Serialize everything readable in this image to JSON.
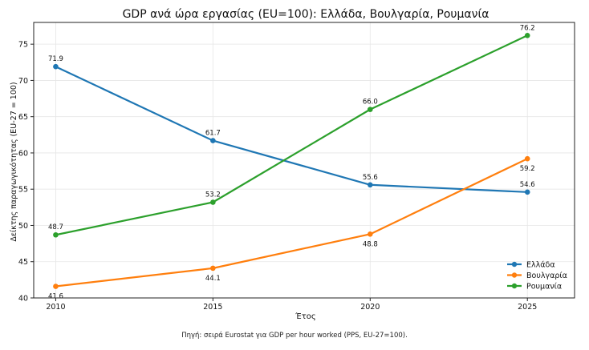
{
  "chart_data": {
    "type": "line",
    "title": "GDP ανά ώρα εργασίας (EU=100): Ελλάδα, Βουλγαρία, Ρουμανία",
    "xlabel": "Έτος",
    "ylabel": "Δείκτης παραγωγικότητας (EU-27 = 100)",
    "x": [
      2010,
      2015,
      2020,
      2025
    ],
    "xlim": [
      2009.3,
      2026.5
    ],
    "ylim": [
      40,
      78
    ],
    "xticks": [
      2010,
      2015,
      2020,
      2025
    ],
    "yticks": [
      40,
      45,
      50,
      55,
      60,
      65,
      70,
      75
    ],
    "grid": true,
    "legend_position": "bottom-right",
    "series": [
      {
        "name": "Ελλάδα",
        "color": "#1f77b4",
        "values": [
          71.9,
          61.7,
          55.6,
          54.6
        ],
        "labels": [
          "71.9",
          "61.7",
          "55.6",
          "54.6"
        ],
        "label_side": [
          "above",
          "above",
          "above",
          "above"
        ]
      },
      {
        "name": "Βουλγαρία",
        "color": "#ff7f0e",
        "values": [
          41.6,
          44.1,
          48.8,
          59.2
        ],
        "labels": [
          "41.6",
          "44.1",
          "48.8",
          "59.2"
        ],
        "label_side": [
          "below",
          "below",
          "below",
          "below"
        ]
      },
      {
        "name": "Ρουμανία",
        "color": "#2ca02c",
        "values": [
          48.7,
          53.2,
          66.0,
          76.2
        ],
        "labels": [
          "48.7",
          "53.2",
          "66.0",
          "76.2"
        ],
        "label_side": [
          "above",
          "above",
          "above",
          "above"
        ]
      }
    ]
  },
  "caption": "Πηγή: σειρά Eurostat για GDP per hour worked (PPS, EU-27=100)."
}
